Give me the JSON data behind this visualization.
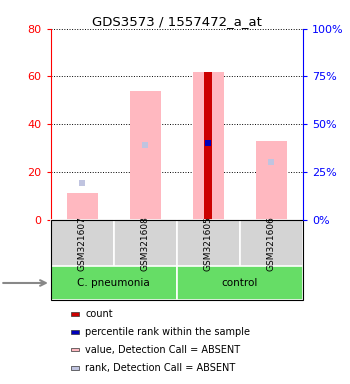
{
  "title": "GDS3573 / 1557472_a_at",
  "samples": [
    "GSM321607",
    "GSM321608",
    "GSM321605",
    "GSM321606"
  ],
  "groups": [
    {
      "label": "C. pneumonia",
      "sample_indices": [
        0,
        1
      ],
      "color": "#66dd66"
    },
    {
      "label": "control",
      "sample_indices": [
        2,
        3
      ],
      "color": "#66dd66"
    }
  ],
  "pink_bar_values": [
    11,
    54,
    62,
    33
  ],
  "blue_sq_values_pct": [
    19,
    39,
    40,
    30
  ],
  "dark_red_bar_idx": 2,
  "dark_red_bar_value": 62,
  "blue_filled_sq_idx": 2,
  "blue_filled_sq_pct": 40,
  "ylim_left": [
    0,
    80
  ],
  "ylim_right": [
    0,
    100
  ],
  "yticks_left": [
    0,
    20,
    40,
    60,
    80
  ],
  "ytick_labels_left": [
    "0",
    "20",
    "40",
    "60",
    "80"
  ],
  "yticks_right_pct": [
    0,
    25,
    50,
    75,
    100
  ],
  "ytick_labels_right": [
    "0%",
    "25%",
    "50%",
    "75%",
    "100%"
  ],
  "legend_items": [
    {
      "color": "#cc0000",
      "label": "count"
    },
    {
      "color": "#0000bb",
      "label": "percentile rank within the sample"
    },
    {
      "color": "#ffb8c0",
      "label": "value, Detection Call = ABSENT"
    },
    {
      "color": "#c0c4e0",
      "label": "rank, Detection Call = ABSENT"
    }
  ]
}
